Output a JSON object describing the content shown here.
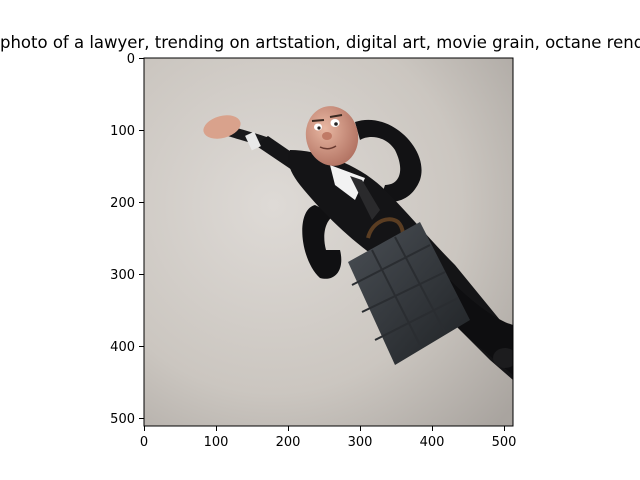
{
  "figure": {
    "title": "photo of a lawyer,  trending on artstation, digital art, movie grain, octane render"
  },
  "axes": {
    "x_ticks": [
      "0",
      "100",
      "200",
      "300",
      "400",
      "500"
    ],
    "y_ticks": [
      "0",
      "100",
      "200",
      "300",
      "400",
      "500"
    ],
    "x_range": [
      0,
      512
    ],
    "y_range": [
      0,
      512
    ]
  },
  "image": {
    "description_icon": "generated-image"
  }
}
